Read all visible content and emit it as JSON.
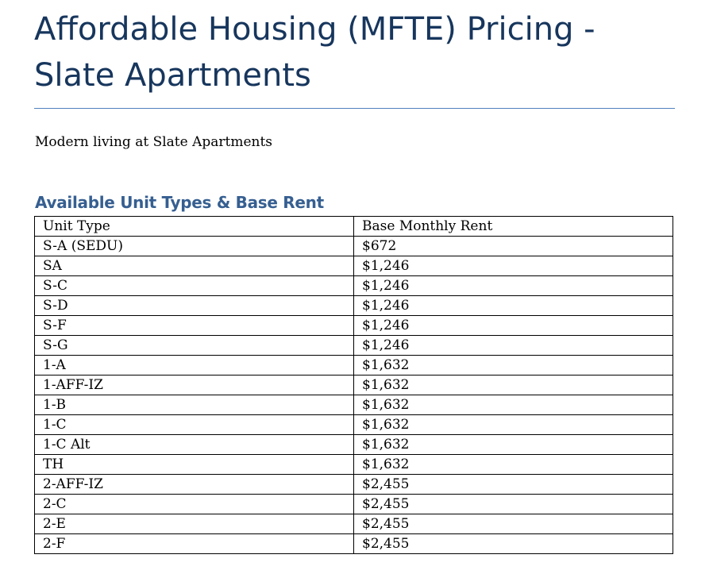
{
  "document": {
    "title": "Affordable Housing (MFTE) Pricing - Slate Apartments",
    "subtitle": "Modern living at Slate Apartments",
    "section_heading": "Available Unit Types & Base Rent"
  },
  "table": {
    "headers": [
      "Unit Type",
      "Base Monthly Rent"
    ],
    "rows": [
      [
        "S-A (SEDU)",
        "$672"
      ],
      [
        "SA",
        "$1,246"
      ],
      [
        "S-C",
        "$1,246"
      ],
      [
        "S-D",
        "$1,246"
      ],
      [
        "S-F",
        "$1,246"
      ],
      [
        "S-G",
        "$1,246"
      ],
      [
        "1-A",
        "$1,632"
      ],
      [
        "1-AFF-IZ",
        "$1,632"
      ],
      [
        "1-B",
        "$1,632"
      ],
      [
        "1-C",
        "$1,632"
      ],
      [
        "1-C Alt",
        "$1,632"
      ],
      [
        "TH",
        "$1,632"
      ],
      [
        "2-AFF-IZ",
        "$2,455"
      ],
      [
        "2-C",
        "$2,455"
      ],
      [
        "2-E",
        "$2,455"
      ],
      [
        "2-F",
        "$2,455"
      ]
    ]
  },
  "colors": {
    "title": "#17365d",
    "heading": "#365f91",
    "rule": "#4f81bd"
  }
}
